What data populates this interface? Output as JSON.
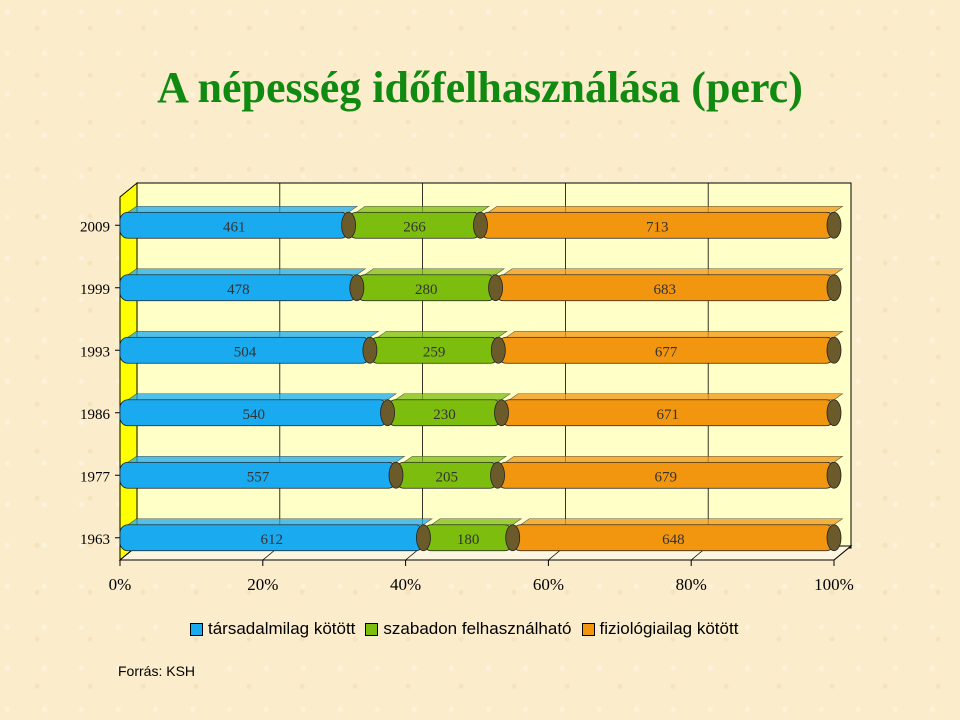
{
  "title": "A népesség időfelhasználása (perc)",
  "source": "Forrás: KSH",
  "chart_data": {
    "type": "bar",
    "orientation": "horizontal",
    "stacked": "100%",
    "categories": [
      "2009",
      "1999",
      "1993",
      "1986",
      "1977",
      "1963"
    ],
    "series": [
      {
        "name": "társadalmilag kötött",
        "color": "#19aaf0",
        "values": [
          461,
          478,
          504,
          540,
          557,
          612
        ]
      },
      {
        "name": "szabadon felhasználható",
        "color": "#7dbd0d",
        "values": [
          266,
          280,
          259,
          230,
          205,
          180
        ]
      },
      {
        "name": "fiziológiailag kötött",
        "color": "#f2960f",
        "values": [
          713,
          683,
          677,
          671,
          679,
          648
        ]
      }
    ],
    "x_ticks": [
      "0%",
      "20%",
      "40%",
      "60%",
      "80%",
      "100%"
    ],
    "xlim": [
      0,
      100
    ],
    "grid": true,
    "legend_position": "bottom"
  }
}
